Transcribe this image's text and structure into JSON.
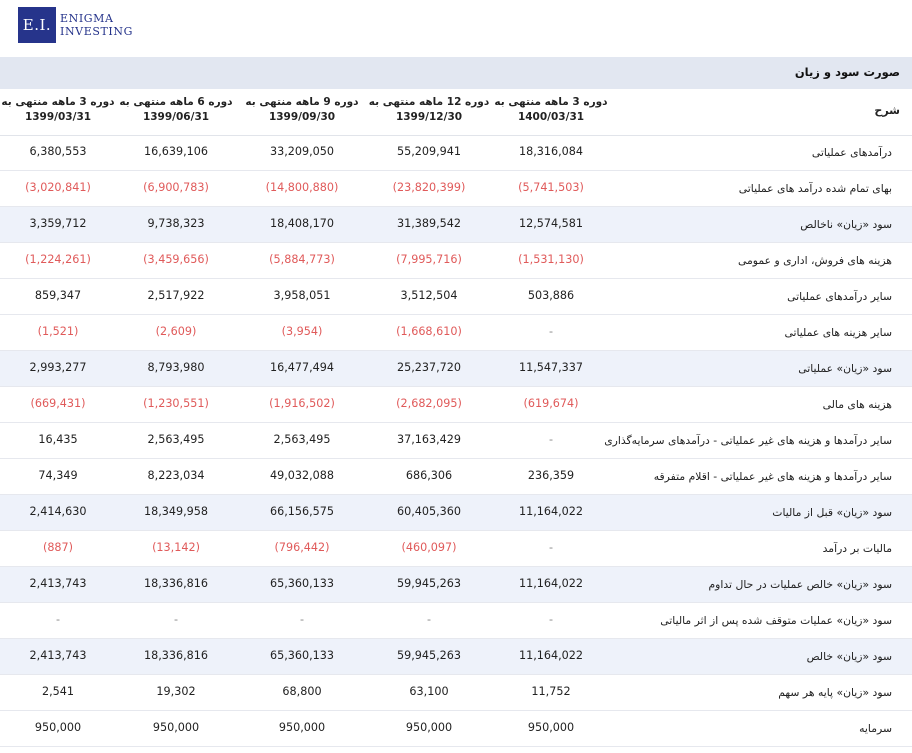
{
  "logo": {
    "mark": "E.I.",
    "line1": "Enigma",
    "line2": "Investing"
  },
  "section_title": "صورت سود و زیان",
  "table": {
    "label_header": "شرح",
    "columns": [
      {
        "line1": "دوره 3 ماهه منتهی به",
        "line2": "1400/03/31"
      },
      {
        "line1": "دوره 12 ماهه منتهی به",
        "line2": "1399/12/30"
      },
      {
        "line1": "دوره 9 ماهه منتهی به",
        "line2": "1399/09/30"
      },
      {
        "line1": "دوره 6 ماهه منتهی به",
        "line2": "1399/06/31"
      },
      {
        "line1": "دوره 3 ماهه منتهی به",
        "line2": "1399/03/31"
      }
    ],
    "rows": [
      {
        "label": "درآمدهای عملیاتی",
        "alt": false,
        "values": [
          "18,316,084",
          "55,209,941",
          "33,209,050",
          "16,639,106",
          "6,380,553"
        ]
      },
      {
        "label": "بهای تمام شده درآمد های عملیاتی",
        "alt": false,
        "values": [
          "(5,741,503)",
          "(23,820,399)",
          "(14,800,880)",
          "(6,900,783)",
          "(3,020,841)"
        ]
      },
      {
        "label": "سود «زیان» ناخالص",
        "alt": true,
        "values": [
          "12,574,581",
          "31,389,542",
          "18,408,170",
          "9,738,323",
          "3,359,712"
        ]
      },
      {
        "label": "هزینه های فروش، اداری و عمومی",
        "alt": false,
        "values": [
          "(1,531,130)",
          "(7,995,716)",
          "(5,884,773)",
          "(3,459,656)",
          "(1,224,261)"
        ]
      },
      {
        "label": "سایر درآمدهای عملیاتی",
        "alt": false,
        "values": [
          "503,886",
          "3,512,504",
          "3,958,051",
          "2,517,922",
          "859,347"
        ]
      },
      {
        "label": "سایر هزینه های عملیاتی",
        "alt": false,
        "values": [
          "-",
          "(1,668,610)",
          "(3,954)",
          "(2,609)",
          "(1,521)"
        ]
      },
      {
        "label": "سود «زیان» عملیاتی",
        "alt": true,
        "values": [
          "11,547,337",
          "25,237,720",
          "16,477,494",
          "8,793,980",
          "2,993,277"
        ]
      },
      {
        "label": "هزینه های مالی",
        "alt": false,
        "values": [
          "(619,674)",
          "(2,682,095)",
          "(1,916,502)",
          "(1,230,551)",
          "(669,431)"
        ]
      },
      {
        "label": "سایر درآمدها و هزینه های غیر عملیاتی - درآمدهای سرمایه‌گذاری",
        "alt": false,
        "values": [
          "-",
          "37,163,429",
          "2,563,495",
          "2,563,495",
          "16,435"
        ]
      },
      {
        "label": "سایر درآمدها و هزینه های غیر عملیاتی - اقلام متفرقه",
        "alt": false,
        "values": [
          "236,359",
          "686,306",
          "49,032,088",
          "8,223,034",
          "74,349"
        ]
      },
      {
        "label": "سود «زیان» قبل از مالیات",
        "alt": true,
        "values": [
          "11,164,022",
          "60,405,360",
          "66,156,575",
          "18,349,958",
          "2,414,630"
        ]
      },
      {
        "label": "مالیات بر درآمد",
        "alt": false,
        "values": [
          "-",
          "(460,097)",
          "(796,442)",
          "(13,142)",
          "(887)"
        ]
      },
      {
        "label": "سود «زیان» خالص عملیات در حال تداوم",
        "alt": true,
        "values": [
          "11,164,022",
          "59,945,263",
          "65,360,133",
          "18,336,816",
          "2,413,743"
        ]
      },
      {
        "label": "سود «زیان» عملیات متوقف شده پس از اثر مالیاتی",
        "alt": false,
        "values": [
          "-",
          "-",
          "-",
          "-",
          "-"
        ]
      },
      {
        "label": "سود «زیان» خالص",
        "alt": true,
        "values": [
          "11,164,022",
          "59,945,263",
          "65,360,133",
          "18,336,816",
          "2,413,743"
        ]
      },
      {
        "label": "سود «زیان» پایه هر سهم",
        "alt": false,
        "values": [
          "11,752",
          "63,100",
          "68,800",
          "19,302",
          "2,541"
        ]
      },
      {
        "label": "سرمایه",
        "alt": false,
        "values": [
          "950,000",
          "950,000",
          "950,000",
          "950,000",
          "950,000"
        ]
      }
    ]
  }
}
